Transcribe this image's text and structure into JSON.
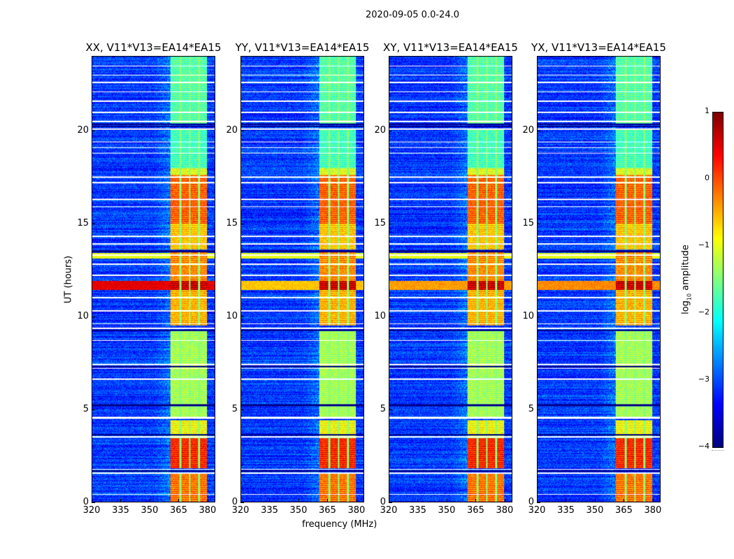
{
  "chart_data": {
    "type": "heatmap",
    "suptitle": "2020-09-05 0.0-24.0",
    "xlabel": "frequency (MHz)",
    "ylabel": "UT (hours)",
    "xlim": [
      320,
      384
    ],
    "ylim": [
      0,
      24
    ],
    "xticks": [
      320,
      335,
      350,
      365,
      380
    ],
    "yticks": [
      0,
      5,
      10,
      15,
      20
    ],
    "colormap": "jet",
    "colorbar": {
      "label_prefix": "log",
      "label_sub": "10",
      "label_suffix": " amplitude",
      "range": [
        -4,
        1
      ],
      "ticks": [
        1,
        0,
        -1,
        -2,
        -3,
        -4
      ],
      "tick_labels": [
        "1",
        "0",
        "−1",
        "−2",
        "−3",
        "−4"
      ]
    },
    "panels": [
      {
        "title": "XX, V11*V13=EA14*EA15",
        "rfi_level": 0.5
      },
      {
        "title": "YY, V11*V13=EA14*EA15",
        "rfi_level": -0.6
      },
      {
        "title": "XY, V11*V13=EA14*EA15",
        "rfi_level": -0.4
      },
      {
        "title": "YX, V11*V13=EA14*EA15",
        "rfi_level": -0.3
      }
    ],
    "background_level": -3.1,
    "band": {
      "freq_range": [
        361,
        380
      ],
      "channel_edges": [
        366,
        371,
        376
      ]
    },
    "band_segments": [
      {
        "t": [
          0,
          1.5
        ],
        "level": -0.2
      },
      {
        "t": [
          1.8,
          3.4
        ],
        "level": 0.2
      },
      {
        "t": [
          3.4,
          4.4
        ],
        "level": -0.9
      },
      {
        "t": [
          4.6,
          9.2
        ],
        "level": -1.3
      },
      {
        "t": [
          9.5,
          11.4
        ],
        "level": -0.5
      },
      {
        "t": [
          11.4,
          11.9
        ],
        "level": 0.6
      },
      {
        "t": [
          11.9,
          13.5
        ],
        "level": -0.3
      },
      {
        "t": [
          13.6,
          15.0
        ],
        "level": -0.6
      },
      {
        "t": [
          15.0,
          17.6
        ],
        "level": -0.1
      },
      {
        "t": [
          17.6,
          18.0
        ],
        "level": -1.0
      },
      {
        "t": [
          18.0,
          20.1
        ],
        "level": -1.8
      },
      {
        "t": [
          20.4,
          24.0
        ],
        "level": -1.7
      }
    ],
    "flagged_white_hours": [
      0.4,
      1.55,
      1.75,
      3.5,
      4.5,
      4.55,
      6.6,
      7.2,
      7.4,
      8.7,
      9.35,
      9.6,
      10.3,
      11.0,
      12.2,
      12.8,
      13.3,
      13.9,
      14.3,
      15.9,
      16.3,
      17.2,
      17.5,
      18.8,
      19.1,
      19.4,
      20.1,
      20.5,
      21.0,
      21.6,
      22.1,
      22.6,
      23.0,
      23.5
    ],
    "flagged_black_hours": [
      1.65,
      3.6,
      5.2,
      7.3,
      9.25,
      13.5,
      20.25,
      20.35
    ]
  }
}
